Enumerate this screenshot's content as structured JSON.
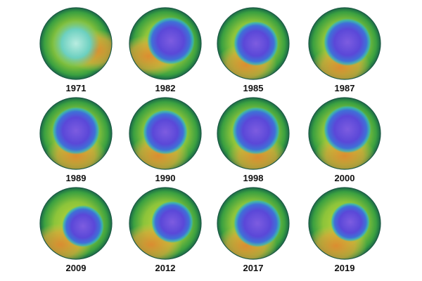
{
  "panels": [
    {
      "label": "1971"
    },
    {
      "label": "1982"
    },
    {
      "label": "1985"
    },
    {
      "label": "1987"
    },
    {
      "label": "1989"
    },
    {
      "label": "1990"
    },
    {
      "label": "1998"
    },
    {
      "label": "2000"
    },
    {
      "label": "2009"
    },
    {
      "label": "2012"
    },
    {
      "label": "2017"
    },
    {
      "label": "2019"
    }
  ]
}
